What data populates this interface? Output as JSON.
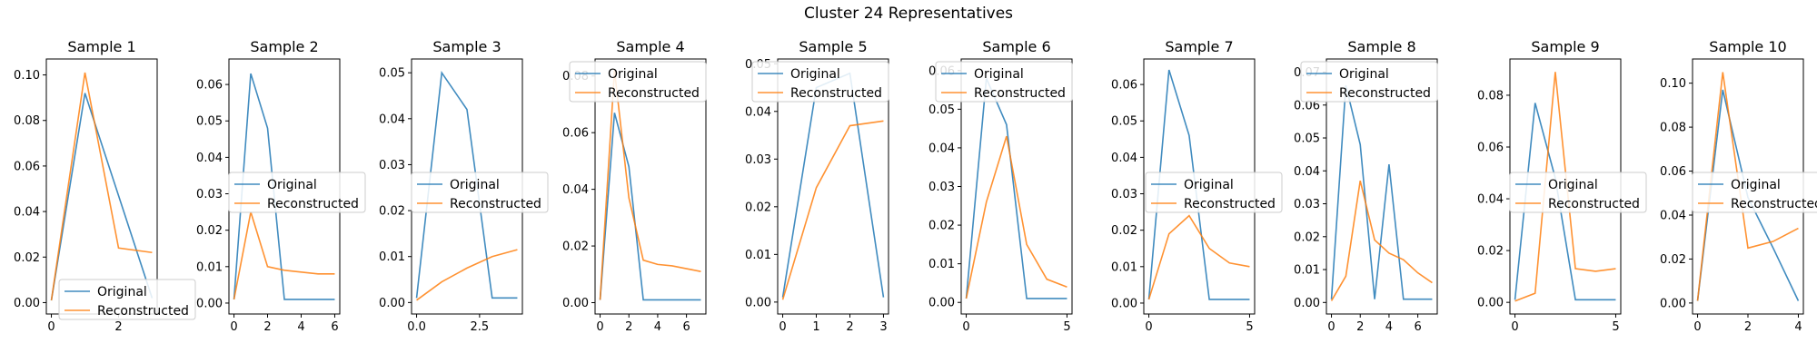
{
  "figure": {
    "title": "Cluster 24 Representatives",
    "background": "#ffffff"
  },
  "colors": {
    "original": "#1f77b4",
    "reconstructed": "#ff7f0e",
    "axes": "#000000",
    "legend_edge": "#cccccc"
  },
  "chart_data": [
    {
      "type": "line",
      "title": "Sample 1",
      "xlim": [
        -0.15,
        3.15
      ],
      "ylim": [
        -0.005,
        0.107
      ],
      "xticks": [
        0,
        2
      ],
      "xtick_labels": [
        "0",
        "2"
      ],
      "yticks": [
        0,
        0.02,
        0.04,
        0.06,
        0.08,
        0.1
      ],
      "ytick_labels": [
        "0.00",
        "0.02",
        "0.04",
        "0.06",
        "0.08",
        "0.10"
      ],
      "legend": {
        "position": "lower center",
        "entries": [
          "Original",
          "Reconstructed"
        ]
      },
      "series": [
        {
          "name": "Original",
          "x": [
            0,
            1,
            2,
            3
          ],
          "y": [
            0.001,
            0.092,
            0.047,
            0.002
          ]
        },
        {
          "name": "Reconstructed",
          "x": [
            0,
            1,
            2,
            3
          ],
          "y": [
            0.001,
            0.101,
            0.024,
            0.022
          ]
        }
      ]
    },
    {
      "type": "line",
      "title": "Sample 2",
      "xlim": [
        -0.3,
        6.3
      ],
      "ylim": [
        -0.003,
        0.067
      ],
      "xticks": [
        0,
        2,
        4,
        6
      ],
      "xtick_labels": [
        "0",
        "2",
        "4",
        "6"
      ],
      "yticks": [
        0,
        0.01,
        0.02,
        0.03,
        0.04,
        0.05,
        0.06
      ],
      "ytick_labels": [
        "0.00",
        "0.01",
        "0.02",
        "0.03",
        "0.04",
        "0.05",
        "0.06"
      ],
      "legend": {
        "position": "center",
        "entries": [
          "Original",
          "Reconstructed"
        ]
      },
      "series": [
        {
          "name": "Original",
          "x": [
            0,
            1,
            2,
            3,
            4,
            5,
            6
          ],
          "y": [
            0.001,
            0.063,
            0.048,
            0.001,
            0.001,
            0.001,
            0.001
          ]
        },
        {
          "name": "Reconstructed",
          "x": [
            0,
            1,
            2,
            3,
            4,
            5,
            6
          ],
          "y": [
            0.001,
            0.025,
            0.01,
            0.009,
            0.0085,
            0.008,
            0.008
          ]
        }
      ]
    },
    {
      "type": "line",
      "title": "Sample 3",
      "xlim": [
        -0.2,
        4.2
      ],
      "ylim": [
        -0.0025,
        0.053
      ],
      "xticks": [
        0,
        2.5
      ],
      "xtick_labels": [
        "0.0",
        "2.5"
      ],
      "yticks": [
        0,
        0.01,
        0.02,
        0.03,
        0.04,
        0.05
      ],
      "ytick_labels": [
        "0.00",
        "0.01",
        "0.02",
        "0.03",
        "0.04",
        "0.05"
      ],
      "legend": {
        "position": "center",
        "entries": [
          "Original",
          "Reconstructed"
        ]
      },
      "series": [
        {
          "name": "Original",
          "x": [
            0,
            1,
            2,
            3,
            4
          ],
          "y": [
            0.001,
            0.05,
            0.042,
            0.001,
            0.001
          ]
        },
        {
          "name": "Reconstructed",
          "x": [
            0,
            1,
            2,
            3,
            4
          ],
          "y": [
            0.0005,
            0.0045,
            0.0075,
            0.01,
            0.0115
          ]
        }
      ]
    },
    {
      "type": "line",
      "title": "Sample 4",
      "xlim": [
        -0.35,
        7.35
      ],
      "ylim": [
        -0.004,
        0.086
      ],
      "xticks": [
        0,
        2,
        4,
        6
      ],
      "xtick_labels": [
        "0",
        "2",
        "4",
        "6"
      ],
      "yticks": [
        0,
        0.02,
        0.04,
        0.06,
        0.08
      ],
      "ytick_labels": [
        "0.00",
        "0.02",
        "0.04",
        "0.06",
        "0.08"
      ],
      "legend": {
        "position": "upper left",
        "entries": [
          "Original",
          "Reconstructed"
        ]
      },
      "series": [
        {
          "name": "Original",
          "x": [
            0,
            1,
            2,
            3,
            4,
            5,
            6,
            7
          ],
          "y": [
            0.001,
            0.067,
            0.048,
            0.001,
            0.001,
            0.001,
            0.001,
            0.001
          ]
        },
        {
          "name": "Reconstructed",
          "x": [
            0,
            1,
            2,
            3,
            4,
            5,
            6,
            7
          ],
          "y": [
            0.001,
            0.082,
            0.037,
            0.015,
            0.0135,
            0.013,
            0.012,
            0.011
          ]
        }
      ]
    },
    {
      "type": "line",
      "title": "Sample 5",
      "xlim": [
        -0.15,
        3.15
      ],
      "ylim": [
        -0.0025,
        0.051
      ],
      "xticks": [
        0,
        1,
        2,
        3
      ],
      "xtick_labels": [
        "0",
        "1",
        "2",
        "3"
      ],
      "yticks": [
        0,
        0.01,
        0.02,
        0.03,
        0.04,
        0.05
      ],
      "ytick_labels": [
        "0.00",
        "0.01",
        "0.02",
        "0.03",
        "0.04",
        "0.05"
      ],
      "legend": {
        "position": "upper left",
        "entries": [
          "Original",
          "Reconstructed"
        ]
      },
      "series": [
        {
          "name": "Original",
          "x": [
            0,
            1,
            2,
            3
          ],
          "y": [
            0.001,
            0.045,
            0.048,
            0.001
          ]
        },
        {
          "name": "Reconstructed",
          "x": [
            0,
            1,
            2,
            3
          ],
          "y": [
            0.0005,
            0.024,
            0.037,
            0.038
          ]
        }
      ]
    },
    {
      "type": "line",
      "title": "Sample 6",
      "xlim": [
        -0.25,
        5.25
      ],
      "ylim": [
        -0.003,
        0.063
      ],
      "xticks": [
        0,
        5
      ],
      "xtick_labels": [
        "0",
        "5"
      ],
      "yticks": [
        0,
        0.01,
        0.02,
        0.03,
        0.04,
        0.05,
        0.06
      ],
      "ytick_labels": [
        "0.00",
        "0.01",
        "0.02",
        "0.03",
        "0.04",
        "0.05",
        "0.06"
      ],
      "legend": {
        "position": "upper left",
        "entries": [
          "Original",
          "Reconstructed"
        ]
      },
      "series": [
        {
          "name": "Original",
          "x": [
            0,
            1,
            2,
            3,
            4,
            5
          ],
          "y": [
            0.001,
            0.058,
            0.046,
            0.001,
            0.001,
            0.001
          ]
        },
        {
          "name": "Reconstructed",
          "x": [
            0,
            1,
            2,
            3,
            4,
            5
          ],
          "y": [
            0.001,
            0.026,
            0.043,
            0.015,
            0.006,
            0.004
          ]
        }
      ]
    },
    {
      "type": "line",
      "title": "Sample 7",
      "xlim": [
        -0.25,
        5.25
      ],
      "ylim": [
        -0.003,
        0.067
      ],
      "xticks": [
        0,
        5
      ],
      "xtick_labels": [
        "0",
        "5"
      ],
      "yticks": [
        0,
        0.01,
        0.02,
        0.03,
        0.04,
        0.05,
        0.06
      ],
      "ytick_labels": [
        "0.00",
        "0.01",
        "0.02",
        "0.03",
        "0.04",
        "0.05",
        "0.06"
      ],
      "legend": {
        "position": "center left",
        "entries": [
          "Original",
          "Reconstructed"
        ]
      },
      "series": [
        {
          "name": "Original",
          "x": [
            0,
            1,
            2,
            3,
            4,
            5
          ],
          "y": [
            0.001,
            0.064,
            0.046,
            0.001,
            0.001,
            0.001
          ]
        },
        {
          "name": "Reconstructed",
          "x": [
            0,
            1,
            2,
            3,
            4,
            5
          ],
          "y": [
            0.001,
            0.019,
            0.024,
            0.015,
            0.011,
            0.01
          ]
        }
      ]
    },
    {
      "type": "line",
      "title": "Sample 8",
      "xlim": [
        -0.35,
        7.35
      ],
      "ylim": [
        -0.0035,
        0.074
      ],
      "xticks": [
        0,
        2,
        4,
        6
      ],
      "xtick_labels": [
        "0",
        "2",
        "4",
        "6"
      ],
      "yticks": [
        0,
        0.01,
        0.02,
        0.03,
        0.04,
        0.05,
        0.06,
        0.07
      ],
      "ytick_labels": [
        "0.00",
        "0.01",
        "0.02",
        "0.03",
        "0.04",
        "0.05",
        "0.06",
        "0.07"
      ],
      "legend": {
        "position": "upper left",
        "entries": [
          "Original",
          "Reconstructed"
        ]
      },
      "series": [
        {
          "name": "Original",
          "x": [
            0,
            1,
            2,
            3,
            4,
            5,
            6,
            7
          ],
          "y": [
            0.001,
            0.066,
            0.048,
            0.001,
            0.042,
            0.001,
            0.001,
            0.001
          ]
        },
        {
          "name": "Reconstructed",
          "x": [
            0,
            1,
            2,
            3,
            4,
            5,
            6,
            7
          ],
          "y": [
            0.0005,
            0.008,
            0.037,
            0.019,
            0.015,
            0.013,
            0.009,
            0.006
          ]
        }
      ]
    },
    {
      "type": "line",
      "title": "Sample 9",
      "xlim": [
        -0.25,
        5.25
      ],
      "ylim": [
        -0.0045,
        0.094
      ],
      "xticks": [
        0,
        5
      ],
      "xtick_labels": [
        "0",
        "5"
      ],
      "yticks": [
        0,
        0.02,
        0.04,
        0.06,
        0.08
      ],
      "ytick_labels": [
        "0.00",
        "0.02",
        "0.04",
        "0.06",
        "0.08"
      ],
      "legend": {
        "position": "center",
        "entries": [
          "Original",
          "Reconstructed"
        ]
      },
      "series": [
        {
          "name": "Original",
          "x": [
            0,
            1,
            2,
            3,
            4,
            5
          ],
          "y": [
            0.001,
            0.077,
            0.048,
            0.001,
            0.001,
            0.001
          ]
        },
        {
          "name": "Reconstructed",
          "x": [
            0,
            1,
            2,
            3,
            4,
            5
          ],
          "y": [
            0.0005,
            0.0035,
            0.089,
            0.013,
            0.012,
            0.013
          ]
        }
      ]
    },
    {
      "type": "line",
      "title": "Sample 10",
      "xlim": [
        -0.2,
        4.2
      ],
      "ylim": [
        -0.005,
        0.111
      ],
      "xticks": [
        0,
        2,
        4
      ],
      "xtick_labels": [
        "0",
        "2",
        "4"
      ],
      "yticks": [
        0,
        0.02,
        0.04,
        0.06,
        0.08,
        0.1
      ],
      "ytick_labels": [
        "0.00",
        "0.02",
        "0.04",
        "0.06",
        "0.08",
        "0.10"
      ],
      "legend": {
        "position": "center",
        "entries": [
          "Original",
          "Reconstructed"
        ]
      },
      "series": [
        {
          "name": "Original",
          "x": [
            0,
            1,
            2,
            3,
            4
          ],
          "y": [
            0.001,
            0.097,
            0.048,
            0.025,
            0.001
          ]
        },
        {
          "name": "Reconstructed",
          "x": [
            0,
            1,
            2,
            3,
            4
          ],
          "y": [
            0.001,
            0.105,
            0.025,
            0.028,
            0.034
          ]
        }
      ]
    }
  ]
}
